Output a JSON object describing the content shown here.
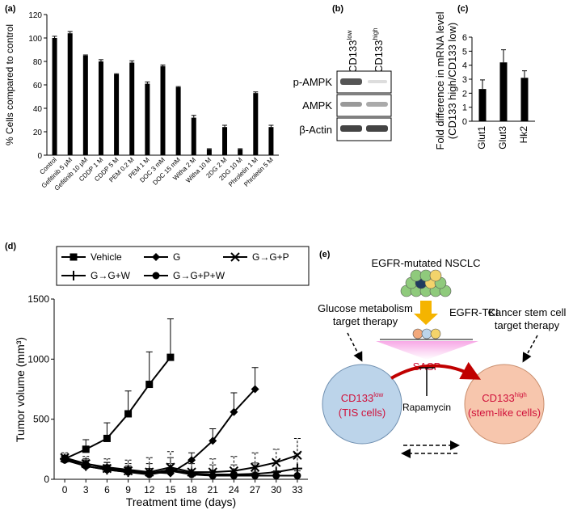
{
  "chart_data": [
    {
      "type": "bar",
      "label": "(a)",
      "y_label": [
        "% Cells compared to control"
      ],
      "categories": [
        "Control",
        "Gefitinib 5 μM",
        "Gefitinib 10 μM",
        "CDDP 1 M",
        "CDDP 5 M",
        "PEM 0.2 M",
        "PEM 1 M",
        "DOC 3 mM",
        "DOC 15 mM",
        "Witha 2 M",
        "Witha 10 M",
        "2DG 2 M",
        "2DG 10 M",
        "Phroletin 1 M",
        "Phroletin 5 M"
      ],
      "values": [
        100,
        104,
        85,
        80,
        69,
        79,
        61,
        76,
        58,
        32,
        5,
        24,
        5,
        53,
        24
      ],
      "errors": [
        1.5,
        1.5,
        0.5,
        1.5,
        0.5,
        1.5,
        1.5,
        1,
        0.5,
        2,
        0.5,
        1.5,
        0.5,
        1,
        1.5
      ],
      "color": "#000000",
      "ylim": [
        0,
        120
      ],
      "yticks": [
        0,
        20,
        40,
        60,
        80,
        100,
        120
      ]
    },
    {
      "type": "bar",
      "label": "(c)",
      "y_label": [
        "Fold difference in mRNA level",
        "(CD133 high/CD133 low)"
      ],
      "categories": [
        "Glut1",
        "Glut3",
        "Hk2"
      ],
      "values": [
        2.3,
        4.2,
        3.1
      ],
      "errors": [
        0.65,
        0.9,
        0.5
      ],
      "color": "#000000",
      "ylim": [
        0,
        6
      ],
      "yticks": [
        0,
        1,
        2,
        3,
        4,
        5,
        6
      ]
    },
    {
      "type": "line",
      "label": "(d)",
      "x_label": "Treatment time (days)",
      "y_label": [
        "Tumor volume (mm³)"
      ],
      "legend": "top",
      "x": [
        0,
        3,
        6,
        9,
        12,
        15,
        18,
        21,
        24,
        27,
        30,
        33
      ],
      "xlim": [
        -1.5,
        34.5
      ],
      "xticks": [
        0,
        3,
        6,
        9,
        12,
        15,
        18,
        21,
        24,
        27,
        30,
        33
      ],
      "ylim": [
        0,
        1500
      ],
      "yticks": [
        0,
        500,
        1000,
        1500
      ],
      "series": [
        {
          "name": "Vehicle",
          "marker": "square",
          "color": "#000000",
          "values": [
            170,
            250,
            340,
            545,
            790,
            1015,
            null,
            null,
            null,
            null,
            null,
            null
          ],
          "errors": [
            30,
            80,
            130,
            190,
            270,
            320,
            null,
            null,
            null,
            null,
            null,
            null
          ]
        },
        {
          "name": "G",
          "marker": "diamond",
          "color": "#000000",
          "values": [
            165,
            130,
            100,
            80,
            60,
            50,
            160,
            320,
            560,
            750,
            null,
            null
          ],
          "errors": [
            30,
            40,
            40,
            30,
            30,
            30,
            60,
            100,
            160,
            180,
            null,
            null
          ]
        },
        {
          "name": "G→G+P",
          "marker": "x",
          "color": "#000000",
          "values": [
            180,
            130,
            90,
            70,
            60,
            100,
            60,
            60,
            70,
            100,
            140,
            200
          ],
          "errors": [
            40,
            60,
            80,
            90,
            120,
            130,
            100,
            110,
            120,
            120,
            110,
            140
          ]
        },
        {
          "name": "G→G+W",
          "marker": "plus",
          "color": "#000000",
          "values": [
            170,
            110,
            80,
            60,
            50,
            80,
            50,
            40,
            40,
            45,
            60,
            90
          ],
          "errors": [
            30,
            50,
            60,
            70,
            80,
            100,
            80,
            80,
            80,
            90,
            100,
            120
          ]
        },
        {
          "name": "G→G+P+W",
          "marker": "circle",
          "color": "#000000",
          "values": [
            160,
            110,
            80,
            60,
            40,
            70,
            40,
            30,
            30,
            30,
            30,
            30
          ],
          "errors": [
            30,
            40,
            40,
            40,
            30,
            60,
            40,
            40,
            30,
            30,
            40,
            40
          ]
        }
      ]
    }
  ],
  "blot": {
    "label": "(b)",
    "columns": [
      {
        "name": "CD133",
        "sup": "low"
      },
      {
        "name": "CD133",
        "sup": "high"
      }
    ],
    "rows": [
      "p-AMPK",
      "AMPK",
      "β-Actin"
    ]
  },
  "diagram": {
    "label": "(e)",
    "title": "EGFR-mutated NSCLC",
    "treatment": "EGFR-TKI",
    "left_therapy": [
      "Glucose metabolism",
      "target therapy"
    ],
    "right_therapy": [
      "Cancer stem cell",
      "target therapy"
    ],
    "sasp": "SASP",
    "inhibitor": "Rapamycin",
    "left_cell": {
      "name": "CD133",
      "sup": "low",
      "desc": "(TIS cells)"
    },
    "right_cell": {
      "name": "CD133",
      "sup": "high",
      "desc": "(stem-like cells)"
    }
  }
}
